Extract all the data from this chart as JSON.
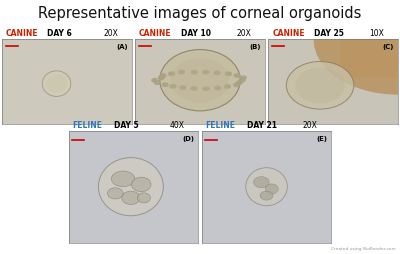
{
  "title": "Representative images of corneal organoids",
  "title_fontsize": 10.5,
  "background_color": "#ffffff",
  "panels": [
    {
      "row": 0,
      "col": 0,
      "species": "CANINE",
      "day": "DAY 6",
      "mag": "20X",
      "label": "(A)",
      "species_color": "#cc2200",
      "bg_color": "#cdc9bc"
    },
    {
      "row": 0,
      "col": 1,
      "species": "CANINE",
      "day": "DAY 10",
      "mag": "20X",
      "label": "(B)",
      "species_color": "#cc2200",
      "bg_color": "#cac7ba"
    },
    {
      "row": 0,
      "col": 2,
      "species": "CANINE",
      "day": "DAY 25",
      "mag": "10X",
      "label": "(C)",
      "species_color": "#cc2200",
      "bg_color": "#c8c5b8"
    },
    {
      "row": 1,
      "col": 0,
      "species": "FELINE",
      "day": "DAY 5",
      "mag": "40X",
      "label": "(D)",
      "species_color": "#3377bb",
      "bg_color": "#c5c5cc"
    },
    {
      "row": 1,
      "col": 1,
      "species": "FELINE",
      "day": "DAY 21",
      "mag": "20X",
      "label": "(E)",
      "species_color": "#3377bb",
      "bg_color": "#c5c5cc"
    }
  ],
  "watermark": "Created using BioRender.com",
  "watermark_color": "#999999",
  "scalebar_color": "#cc0000",
  "label_fontsize": 5.0,
  "header_fontsize": 5.5
}
